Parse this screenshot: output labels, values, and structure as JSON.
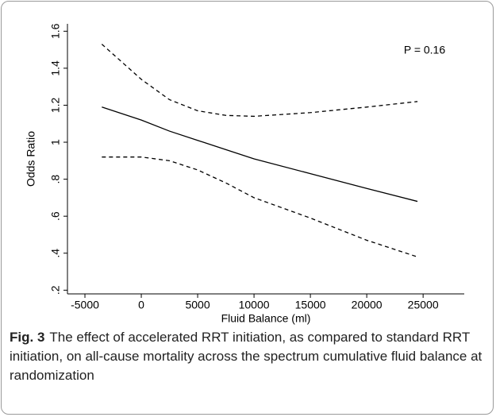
{
  "chart_data": {
    "type": "line",
    "annotation": "P = 0.16",
    "x_label": "Fluid Balance (ml)",
    "y_label": "Odds Ratio",
    "xlim": [
      -6550,
      28650
    ],
    "ylim": [
      0.18,
      1.64
    ],
    "xticks": [
      -5000,
      0,
      5000,
      10000,
      15000,
      20000,
      25000
    ],
    "yticks": [
      {
        "value": 0.2,
        "label": ".2"
      },
      {
        "value": 0.4,
        "label": ".4"
      },
      {
        "value": 0.6,
        "label": ".6"
      },
      {
        "value": 0.8,
        "label": ".8"
      },
      1,
      1.2,
      1.4,
      1.6
    ],
    "x": [
      -3500,
      0,
      2500,
      5000,
      7500,
      10000,
      15000,
      20000,
      24500
    ],
    "series": [
      {
        "color": "#000000",
        "dashed": false,
        "values": [
          1.19,
          1.12,
          1.06,
          1.01,
          0.96,
          0.91,
          0.83,
          0.75,
          0.68
        ]
      },
      {
        "color": "#000000",
        "dashed": true,
        "values": [
          1.53,
          1.34,
          1.23,
          1.17,
          1.145,
          1.14,
          1.16,
          1.19,
          1.22
        ]
      },
      {
        "color": "#000000",
        "dashed": true,
        "values": [
          0.92,
          0.92,
          0.9,
          0.85,
          0.78,
          0.7,
          0.59,
          0.47,
          0.38
        ]
      }
    ]
  },
  "caption": {
    "label": "Fig. 3",
    "text": "The effect of accelerated RRT initiation, as compared to standard RRT initiation, on all-cause mortality across the spectrum cumulative fluid balance at randomization"
  }
}
